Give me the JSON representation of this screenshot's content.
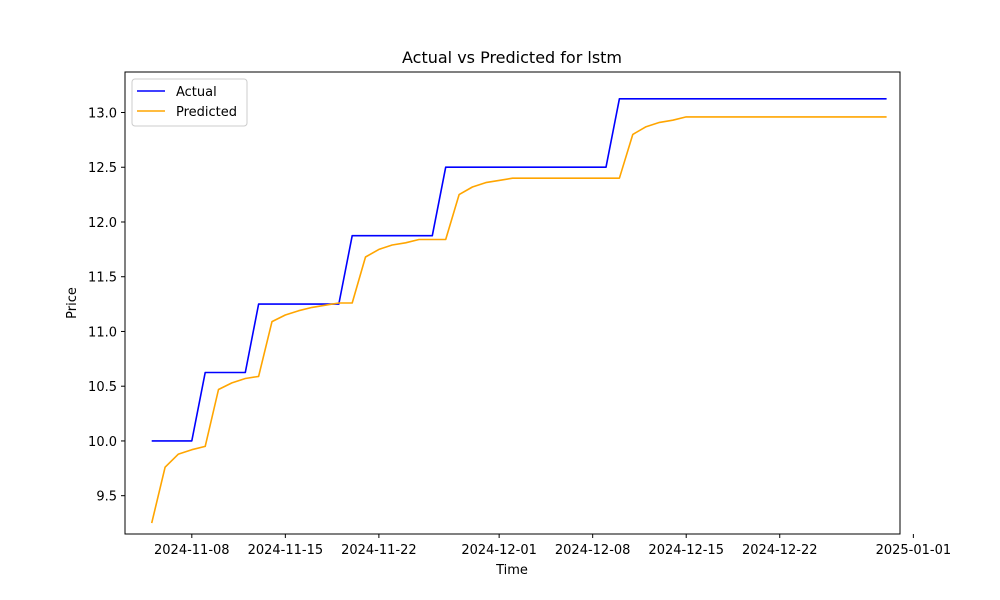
{
  "colors": {
    "actual": "#0000ff",
    "predicted": "#ffa500",
    "axis": "#000000",
    "background": "#ffffff"
  },
  "chart_data": {
    "type": "line",
    "title": "Actual vs Predicted for lstm",
    "xlabel": "Time",
    "ylabel": "Price",
    "grid": false,
    "legend_position": "top-left",
    "xlim": [
      "2024-11-03",
      "2024-12-31"
    ],
    "ylim": [
      9.15,
      13.37
    ],
    "x_ticks": [
      "2024-11-08",
      "2024-11-15",
      "2024-11-22",
      "2024-12-01",
      "2024-12-08",
      "2024-12-15",
      "2024-12-22",
      "2025-01-01"
    ],
    "y_ticks": [
      "9.5",
      "10.0",
      "10.5",
      "11.0",
      "11.5",
      "12.0",
      "12.5",
      "13.0"
    ],
    "series": [
      {
        "name": "Actual",
        "color": "#0000ff",
        "points": [
          [
            "2024-11-05",
            10.0
          ],
          [
            "2024-11-08",
            10.0
          ],
          [
            "2024-11-09",
            10.625
          ],
          [
            "2024-11-12",
            10.625
          ],
          [
            "2024-11-13",
            11.25
          ],
          [
            "2024-11-19",
            11.25
          ],
          [
            "2024-11-20",
            11.875
          ],
          [
            "2024-11-26",
            11.875
          ],
          [
            "2024-11-27",
            12.5
          ],
          [
            "2024-12-09",
            12.5
          ],
          [
            "2024-12-10",
            13.125
          ],
          [
            "2024-12-30",
            13.125
          ]
        ]
      },
      {
        "name": "Predicted",
        "color": "#ffa500",
        "points": [
          [
            "2024-11-05",
            9.25
          ],
          [
            "2024-11-06",
            9.76
          ],
          [
            "2024-11-07",
            9.88
          ],
          [
            "2024-11-08",
            9.92
          ],
          [
            "2024-11-09",
            9.95
          ],
          [
            "2024-11-10",
            10.47
          ],
          [
            "2024-11-11",
            10.53
          ],
          [
            "2024-11-12",
            10.57
          ],
          [
            "2024-11-13",
            10.59
          ],
          [
            "2024-11-14",
            11.09
          ],
          [
            "2024-11-15",
            11.15
          ],
          [
            "2024-11-16",
            11.19
          ],
          [
            "2024-11-17",
            11.22
          ],
          [
            "2024-11-18",
            11.24
          ],
          [
            "2024-11-19",
            11.26
          ],
          [
            "2024-11-20",
            11.26
          ],
          [
            "2024-11-21",
            11.68
          ],
          [
            "2024-11-22",
            11.75
          ],
          [
            "2024-11-23",
            11.79
          ],
          [
            "2024-11-24",
            11.81
          ],
          [
            "2024-11-25",
            11.84
          ],
          [
            "2024-11-26",
            11.84
          ],
          [
            "2024-11-27",
            11.84
          ],
          [
            "2024-11-28",
            12.25
          ],
          [
            "2024-11-29",
            12.32
          ],
          [
            "2024-11-30",
            12.36
          ],
          [
            "2024-12-01",
            12.38
          ],
          [
            "2024-12-02",
            12.4
          ],
          [
            "2024-12-10",
            12.4
          ],
          [
            "2024-12-11",
            12.8
          ],
          [
            "2024-12-12",
            12.87
          ],
          [
            "2024-12-13",
            12.91
          ],
          [
            "2024-12-14",
            12.93
          ],
          [
            "2024-12-15",
            12.96
          ],
          [
            "2024-12-30",
            12.96
          ]
        ]
      }
    ]
  }
}
